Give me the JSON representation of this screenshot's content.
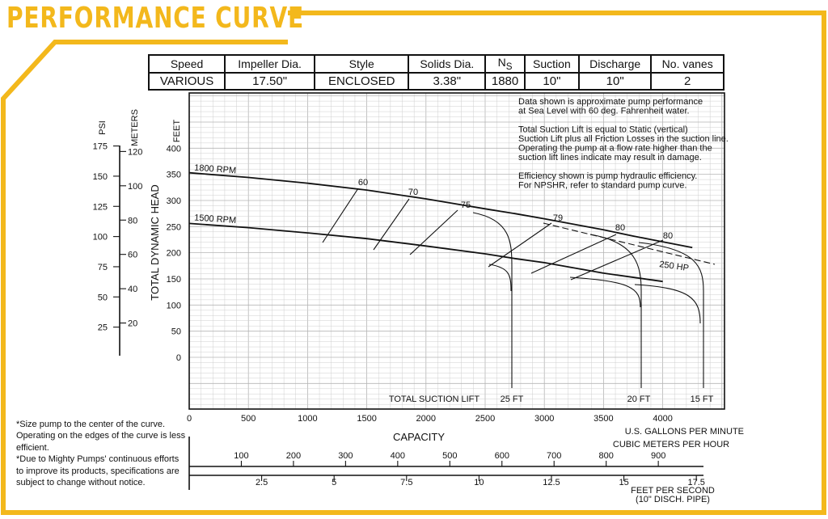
{
  "title": "PERFORMANCE CURVE",
  "colors": {
    "frame": "#F3B81C",
    "title": "#F3B81C",
    "grid": "#cfcfcf",
    "curve": "#111111"
  },
  "specs": {
    "headers": [
      "Speed",
      "Impeller Dia.",
      "Style",
      "Solids Dia.",
      "N",
      "Suction",
      "Discharge",
      "No. vanes"
    ],
    "ns_subscript": "S",
    "values": [
      "VARIOUS",
      "17.50\"",
      "ENCLOSED",
      "3.38\"",
      "1880",
      "10\"",
      "10\"",
      "2"
    ]
  },
  "chart_note": "Data shown is approximate pump performance\nat Sea Level with 60 deg. Fahrenheit water.\n\nTotal Suction Lift is equal to Static (vertical)\nSuction Lift plus all Friction Losses in the suction line.\nOperating the pump at a flow rate higher than the\nsuction lift lines indicate may result in damage.\n\nEfficiency shown is pump hydraulic efficiency.\nFor NPSHR, refer to standard pump curve.",
  "footnote": "*Size pump to the center of the curve.\nOperating on the edges of the curve is less\nefficient.\n*Due to Mighty Pumps' continuous efforts\nto improve its products, specifications are\nsubject to change without notice.",
  "chart_data": {
    "type": "line",
    "xlabel": "CAPACITY",
    "x_unit": "U.S. GALLONS PER MINUTE",
    "ylabel": "TOTAL DYNAMIC HEAD",
    "y_unit": "FEET",
    "xlim": [
      0,
      4500
    ],
    "ylim": [
      -100,
      500
    ],
    "grid": true,
    "x_ticks": [
      "0",
      "500",
      "1000",
      "1500",
      "2000",
      "2500",
      "3000",
      "3500",
      "4000"
    ],
    "y_ticks": [
      "0",
      "50",
      "100",
      "150",
      "200",
      "250",
      "300",
      "350",
      "400"
    ],
    "psi_label": "PSI",
    "psi_ticks": [
      "25",
      "50",
      "75",
      "100",
      "125",
      "150",
      "175"
    ],
    "meters_label": "METERS",
    "meters_ticks": [
      "20",
      "40",
      "60",
      "80",
      "100",
      "120"
    ],
    "cmh_label": "CUBIC METERS PER HOUR",
    "cmh_ticks": [
      "100",
      "200",
      "300",
      "400",
      "500",
      "600",
      "700",
      "800",
      "900"
    ],
    "fps_label": "FEET PER SECOND",
    "fps_sublabel": "(10\" DISCH. PIPE)",
    "fps_ticks": [
      "2.5",
      "5",
      "7.5",
      "10",
      "12.5",
      "15",
      "17.5"
    ],
    "series": [
      {
        "name": "1800 RPM",
        "x": [
          0,
          500,
          1000,
          1500,
          2000,
          2500,
          2750,
          3000,
          3500,
          3750,
          4000,
          4250
        ],
        "y": [
          353,
          344,
          333,
          320,
          303,
          284,
          275,
          265,
          244,
          232,
          221,
          210
        ]
      },
      {
        "name": "1500 RPM",
        "x": [
          0,
          500,
          1000,
          1500,
          2000,
          2500,
          2750,
          3000,
          3500,
          4000
        ],
        "y": [
          256,
          248,
          238,
          227,
          213,
          198,
          189,
          181,
          161,
          145
        ]
      }
    ],
    "efficiency_labels": [
      "60",
      "70",
      "75",
      "79",
      "80",
      "80"
    ],
    "hp_label": "250 HP",
    "suction_lift_title": "TOTAL SUCTION LIFT",
    "suction_lift_labels": [
      "25 FT",
      "20 FT",
      "15 FT"
    ]
  }
}
